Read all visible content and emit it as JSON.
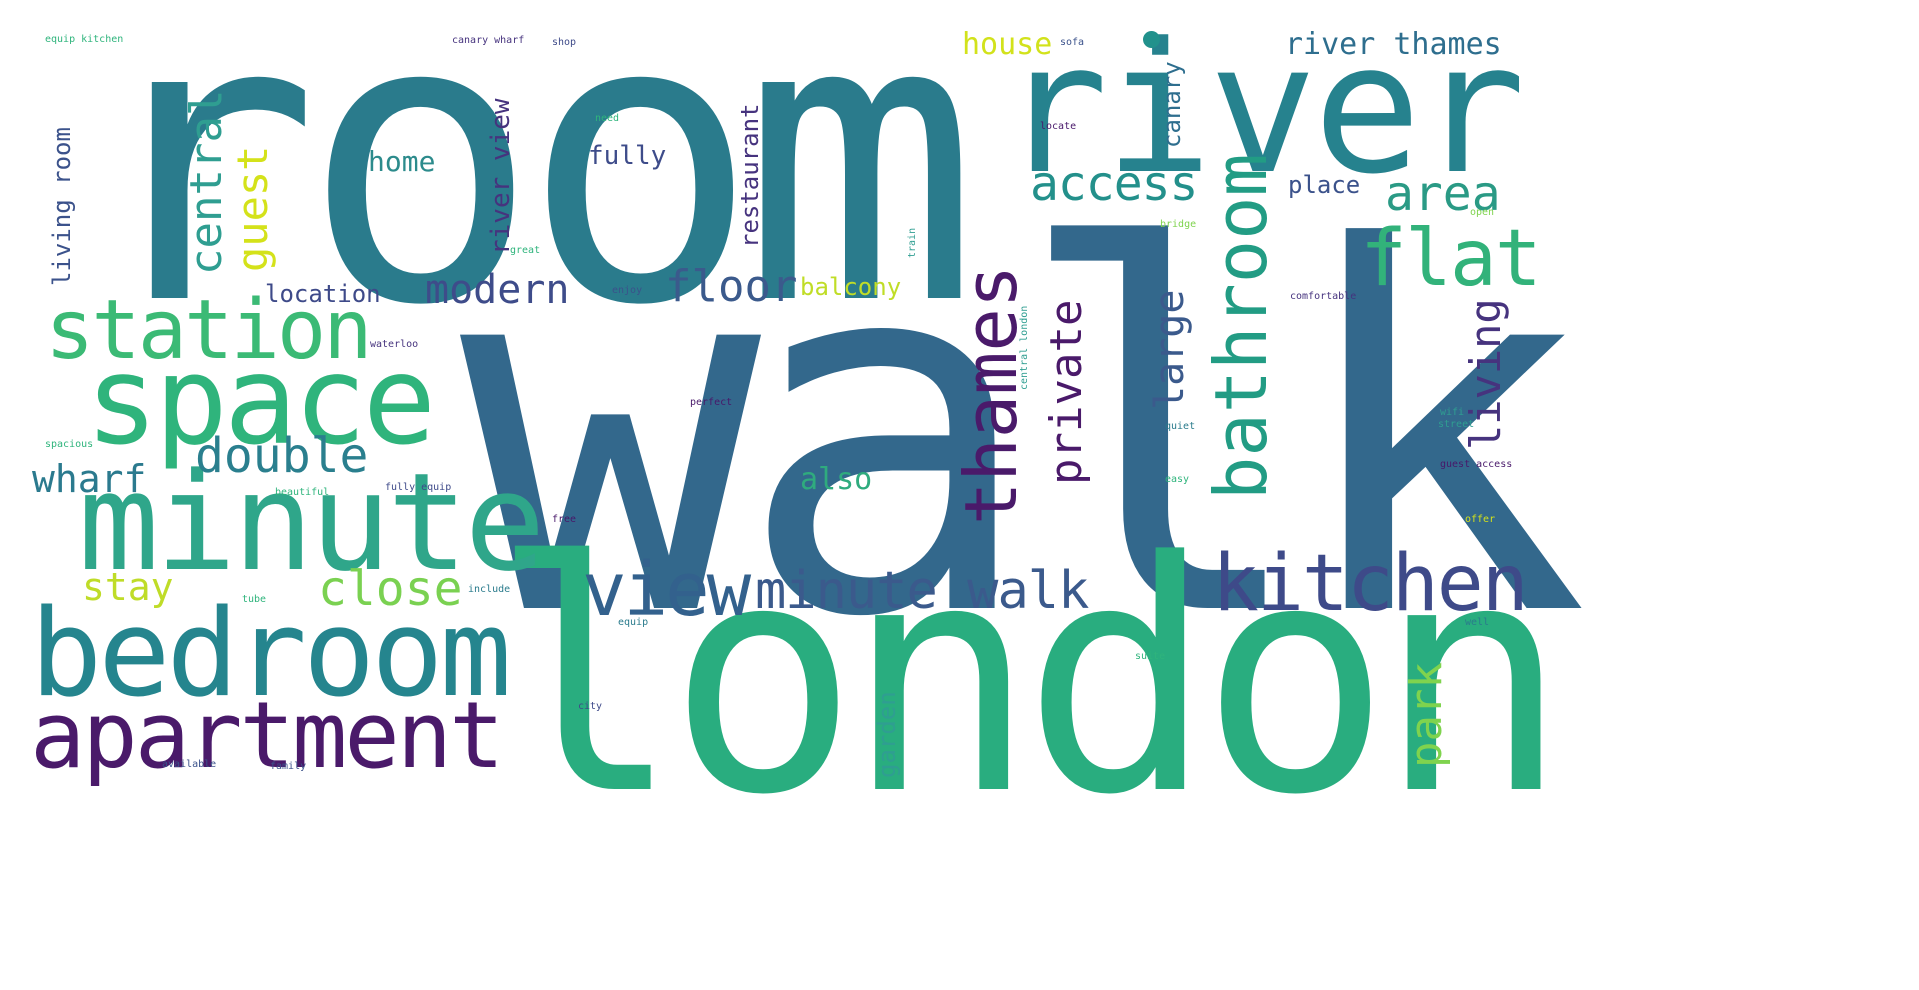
{
  "palette": {
    "teal": "#2a7b8c",
    "blue": "#33688c",
    "green": "#29ad7f",
    "aqua": "#2f9e91",
    "lime": "#7fd34e",
    "yellow": "#d7e21a",
    "purple": "#48186a",
    "indigo": "#414487"
  },
  "words": {
    "walk": "walk",
    "room": "room",
    "london": "london",
    "river": "river",
    "minute": "minute",
    "bedroom": "bedroom",
    "kitchen": "kitchen",
    "apartment": "apartment",
    "space": "space",
    "station": "station",
    "view": "view",
    "minute_walk": "minute walk",
    "bathroom": "bathroom",
    "flat": "flat",
    "thames": "thames",
    "access": "access",
    "area": "area",
    "double": "double",
    "close": "close",
    "wharf": "wharf",
    "modern": "modern",
    "floor": "floor",
    "living": "living",
    "private": "private",
    "large": "large",
    "central": "central",
    "guest": "guest",
    "stay": "stay",
    "park": "park",
    "river_thames": "river thames",
    "house": "house",
    "home": "home",
    "fully": "fully",
    "place": "place",
    "location": "location",
    "balcony": "balcony",
    "also": "also",
    "river_view": "river view",
    "restaurant": "restaurant",
    "living_room": "living room",
    "canary": "canary",
    "garden": "garden",
    "equip_kitchen": "equip kitchen",
    "canary_wharf": "canary wharf",
    "shop": "shop",
    "sofa": "sofa",
    "need": "need",
    "locate": "locate",
    "great": "great",
    "bridge": "bridge",
    "open": "open",
    "train": "train",
    "enjoy": "enjoy",
    "comfortable": "comfortable",
    "central_london": "central london",
    "waterloo": "waterloo",
    "perfect": "perfect",
    "spacious": "spacious",
    "wifi": "wifi",
    "street": "street",
    "quiet": "quiet",
    "beautiful": "beautiful",
    "fully_equip": "fully equip",
    "easy": "easy",
    "guest_access": "guest access",
    "free": "free",
    "offer": "offer",
    "include": "include",
    "tube": "tube",
    "equip": "equip",
    "well": "well",
    "suite": "suite",
    "city": "city",
    "available": "available",
    "family": "family"
  }
}
